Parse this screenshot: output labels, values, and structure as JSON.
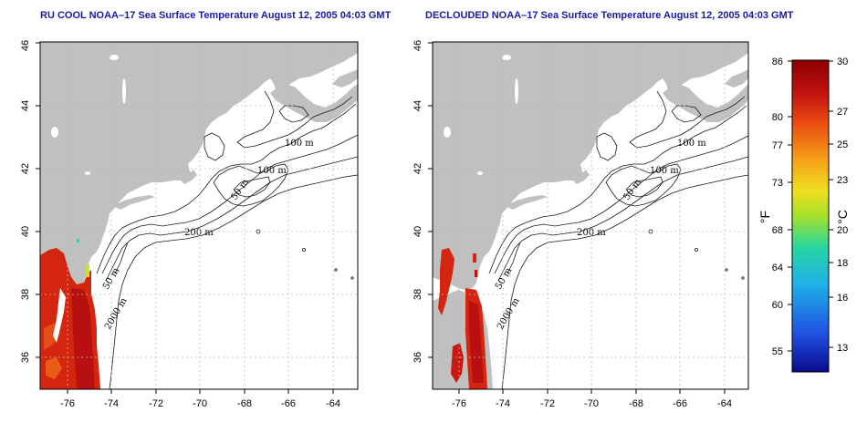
{
  "maps": [
    {
      "title": "RU COOL NOAA–17 Sea Surface Temperature August 12, 2005 04:03 GMT",
      "x_ticks": [
        "-76",
        "-74",
        "-72",
        "-70",
        "-68",
        "-66",
        "-64"
      ],
      "y_ticks": [
        "36",
        "38",
        "40",
        "42",
        "44",
        "46"
      ],
      "contour_labels": [
        "100 m",
        "100 m",
        "50 m",
        "200 m",
        "50 m",
        "2000 m"
      ]
    },
    {
      "title": "DECLOUDED NOAA–17 Sea Surface Temperature August 12, 2005 04:03 GMT",
      "x_ticks": [
        "-76",
        "-74",
        "-72",
        "-70",
        "-68",
        "-66",
        "-64"
      ],
      "y_ticks": [
        "36",
        "38",
        "40",
        "42",
        "44",
        "46"
      ],
      "contour_labels": [
        "100 m",
        "100 m",
        "50 m",
        "200 m",
        "50 m",
        "2000 m"
      ]
    }
  ],
  "colorbar": {
    "fahrenheit_unit": "°F",
    "celsius_unit": "°C",
    "fahrenheit_ticks": [
      "86",
      "80",
      "77",
      "73",
      "68",
      "64",
      "60",
      "55"
    ],
    "celsius_ticks": [
      "30",
      "27",
      "25",
      "23",
      "20",
      "18",
      "16",
      "13"
    ],
    "colors": [
      "#0b0b8c",
      "#1f4fe0",
      "#1fb0e8",
      "#28d6a0",
      "#a4e02a",
      "#f0e020",
      "#f5a018",
      "#ea4a12",
      "#c01010",
      "#8b0000"
    ]
  },
  "colors": {
    "land": "#c0c0c0",
    "ocean": "#ffffff",
    "title": "#1a1aa6",
    "grid": "#bdbdbd"
  }
}
